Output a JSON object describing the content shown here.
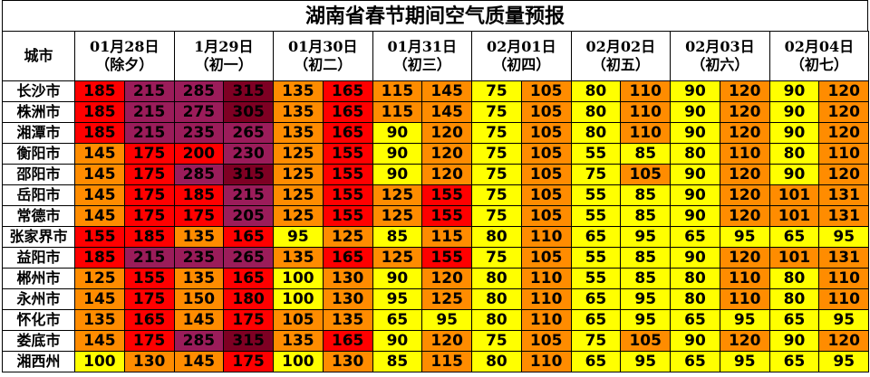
{
  "title": "湖南省春节期间空气质量预报",
  "city_header": "城市",
  "dates": [
    {
      "date": "01月28日",
      "note": "（除夕）"
    },
    {
      "date": "1月29日",
      "note": "（初一）"
    },
    {
      "date": "01月30日",
      "note": "（初二）"
    },
    {
      "date": "01月31日",
      "note": "（初三）"
    },
    {
      "date": "02月01日",
      "note": "（初四）"
    },
    {
      "date": "02月02日",
      "note": "（初五）"
    },
    {
      "date": "02月03日",
      "note": "（初六）"
    },
    {
      "date": "02月04日",
      "note": "（初七）"
    }
  ],
  "colors": {
    "good": "#ffff00",
    "light": "#ff8c00",
    "moderate": "#ff0000",
    "heavy": "#9b1c5a",
    "severe": "#7e0023"
  },
  "rows": [
    {
      "city": "长沙市",
      "values": [
        [
          185,
          215
        ],
        [
          285,
          315
        ],
        [
          135,
          165
        ],
        [
          115,
          145
        ],
        [
          75,
          105
        ],
        [
          80,
          110
        ],
        [
          90,
          120
        ],
        [
          90,
          120
        ]
      ]
    },
    {
      "city": "株洲市",
      "values": [
        [
          185,
          215
        ],
        [
          275,
          305
        ],
        [
          135,
          165
        ],
        [
          115,
          145
        ],
        [
          75,
          105
        ],
        [
          80,
          110
        ],
        [
          90,
          120
        ],
        [
          90,
          120
        ]
      ]
    },
    {
      "city": "湘潭市",
      "values": [
        [
          185,
          215
        ],
        [
          235,
          265
        ],
        [
          135,
          165
        ],
        [
          90,
          120
        ],
        [
          75,
          105
        ],
        [
          80,
          110
        ],
        [
          90,
          120
        ],
        [
          90,
          120
        ]
      ]
    },
    {
      "city": "衡阳市",
      "values": [
        [
          145,
          175
        ],
        [
          200,
          230
        ],
        [
          125,
          155
        ],
        [
          90,
          120
        ],
        [
          75,
          105
        ],
        [
          55,
          85
        ],
        [
          80,
          110
        ],
        [
          80,
          110
        ]
      ]
    },
    {
      "city": "邵阳市",
      "values": [
        [
          145,
          175
        ],
        [
          285,
          315
        ],
        [
          125,
          155
        ],
        [
          90,
          120
        ],
        [
          75,
          105
        ],
        [
          75,
          105
        ],
        [
          90,
          120
        ],
        [
          90,
          120
        ]
      ]
    },
    {
      "city": "岳阳市",
      "values": [
        [
          145,
          175
        ],
        [
          185,
          215
        ],
        [
          125,
          155
        ],
        [
          125,
          155
        ],
        [
          75,
          105
        ],
        [
          55,
          85
        ],
        [
          90,
          120
        ],
        [
          101,
          131
        ]
      ]
    },
    {
      "city": "常德市",
      "values": [
        [
          145,
          175
        ],
        [
          175,
          205
        ],
        [
          125,
          155
        ],
        [
          125,
          155
        ],
        [
          75,
          105
        ],
        [
          55,
          85
        ],
        [
          90,
          120
        ],
        [
          101,
          131
        ]
      ]
    },
    {
      "city": "张家界市",
      "values": [
        [
          155,
          185
        ],
        [
          135,
          165
        ],
        [
          95,
          125
        ],
        [
          85,
          115
        ],
        [
          80,
          110
        ],
        [
          65,
          95
        ],
        [
          65,
          95
        ],
        [
          65,
          95
        ]
      ]
    },
    {
      "city": "益阳市",
      "values": [
        [
          185,
          215
        ],
        [
          235,
          265
        ],
        [
          135,
          165
        ],
        [
          125,
          155
        ],
        [
          75,
          105
        ],
        [
          55,
          85
        ],
        [
          90,
          120
        ],
        [
          101,
          131
        ]
      ]
    },
    {
      "city": "郴州市",
      "values": [
        [
          125,
          155
        ],
        [
          135,
          165
        ],
        [
          100,
          130
        ],
        [
          90,
          120
        ],
        [
          80,
          110
        ],
        [
          55,
          85
        ],
        [
          80,
          110
        ],
        [
          80,
          110
        ]
      ]
    },
    {
      "city": "永州市",
      "values": [
        [
          145,
          175
        ],
        [
          150,
          180
        ],
        [
          100,
          130
        ],
        [
          95,
          125
        ],
        [
          80,
          110
        ],
        [
          65,
          95
        ],
        [
          80,
          110
        ],
        [
          80,
          110
        ]
      ]
    },
    {
      "city": "怀化市",
      "values": [
        [
          135,
          165
        ],
        [
          145,
          175
        ],
        [
          105,
          135
        ],
        [
          65,
          95
        ],
        [
          80,
          110
        ],
        [
          65,
          95
        ],
        [
          65,
          95
        ],
        [
          65,
          95
        ]
      ]
    },
    {
      "city": "娄底市",
      "values": [
        [
          145,
          175
        ],
        [
          285,
          315
        ],
        [
          135,
          165
        ],
        [
          90,
          120
        ],
        [
          75,
          105
        ],
        [
          75,
          105
        ],
        [
          90,
          120
        ],
        [
          90,
          120
        ]
      ]
    },
    {
      "city": "湘西州",
      "values": [
        [
          100,
          130
        ],
        [
          145,
          175
        ],
        [
          100,
          130
        ],
        [
          85,
          115
        ],
        [
          80,
          110
        ],
        [
          65,
          95
        ],
        [
          65,
          95
        ],
        [
          65,
          95
        ]
      ]
    }
  ]
}
